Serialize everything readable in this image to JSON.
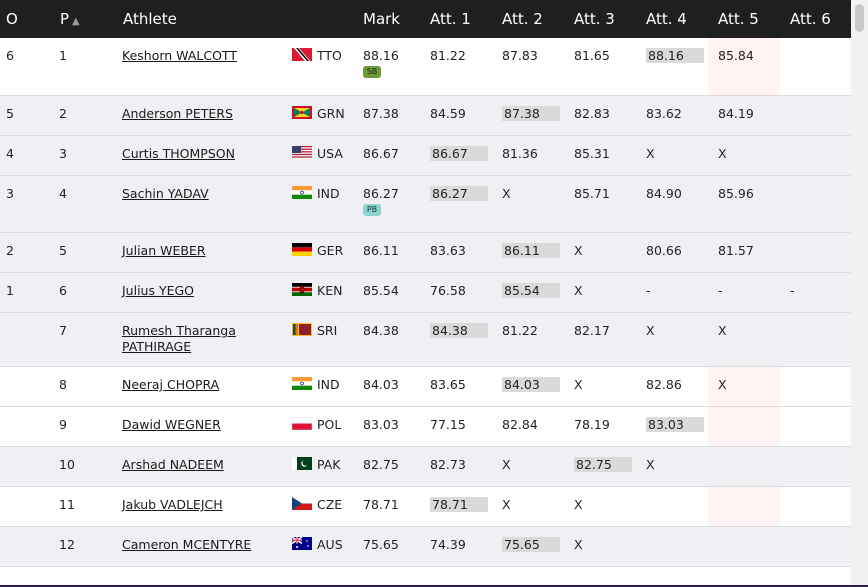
{
  "table": {
    "headers": {
      "o": "O",
      "p": "P",
      "sort_icon": "▲",
      "athlete": "Athlete",
      "mark": "Mark",
      "att1": "Att. 1",
      "att2": "Att. 2",
      "att3": "Att. 3",
      "att4": "Att. 4",
      "att5": "Att. 5",
      "att6": "Att. 6"
    },
    "rows": [
      {
        "o": "6",
        "p": "1",
        "name": "Keshorn WALCOTT",
        "flag": "TTO",
        "country": "TTO",
        "mark": "88.16",
        "badge": "SB",
        "a1": "81.22",
        "a2": "87.83",
        "a3": "81.65",
        "a4": "88.16",
        "a5": "85.84",
        "a6": ""
      },
      {
        "o": "5",
        "p": "2",
        "name": "Anderson PETERS",
        "flag": "GRN",
        "country": "GRN",
        "mark": "87.38",
        "badge": "",
        "a1": "84.59",
        "a2": "87.38",
        "a3": "82.83",
        "a4": "83.62",
        "a5": "84.19",
        "a6": ""
      },
      {
        "o": "4",
        "p": "3",
        "name": "Curtis THOMPSON",
        "flag": "USA",
        "country": "USA",
        "mark": "86.67",
        "badge": "",
        "a1": "86.67",
        "a2": "81.36",
        "a3": "85.31",
        "a4": "X",
        "a5": "X",
        "a6": ""
      },
      {
        "o": "3",
        "p": "4",
        "name": "Sachin YADAV",
        "flag": "IND",
        "country": "IND",
        "mark": "86.27",
        "badge": "PB",
        "a1": "86.27",
        "a2": "X",
        "a3": "85.71",
        "a4": "84.90",
        "a5": "85.96",
        "a6": ""
      },
      {
        "o": "2",
        "p": "5",
        "name": "Julian WEBER",
        "flag": "GER",
        "country": "GER",
        "mark": "86.11",
        "badge": "",
        "a1": "83.63",
        "a2": "86.11",
        "a3": "X",
        "a4": "80.66",
        "a5": "81.57",
        "a6": ""
      },
      {
        "o": "1",
        "p": "6",
        "name": "Julius YEGO",
        "flag": "KEN",
        "country": "KEN",
        "mark": "85.54",
        "badge": "",
        "a1": "76.58",
        "a2": "85.54",
        "a3": "X",
        "a4": "-",
        "a5": "-",
        "a6": "-"
      },
      {
        "o": "",
        "p": "7",
        "name": "Rumesh Tharanga PATHIRAGE",
        "flag": "SRI",
        "country": "SRI",
        "mark": "84.38",
        "badge": "",
        "a1": "84.38",
        "a2": "81.22",
        "a3": "82.17",
        "a4": "X",
        "a5": "X",
        "a6": ""
      },
      {
        "o": "",
        "p": "8",
        "name": "Neeraj CHOPRA",
        "flag": "IND",
        "country": "IND",
        "mark": "84.03",
        "badge": "",
        "a1": "83.65",
        "a2": "84.03",
        "a3": "X",
        "a4": "82.86",
        "a5": "X",
        "a6": ""
      },
      {
        "o": "",
        "p": "9",
        "name": "Dawid WEGNER",
        "flag": "POL",
        "country": "POL",
        "mark": "83.03",
        "badge": "",
        "a1": "77.15",
        "a2": "82.84",
        "a3": "78.19",
        "a4": "83.03",
        "a5": "",
        "a6": ""
      },
      {
        "o": "",
        "p": "10",
        "name": "Arshad NADEEM",
        "flag": "PAK",
        "country": "PAK",
        "mark": "82.75",
        "badge": "",
        "a1": "82.73",
        "a2": "X",
        "a3": "82.75",
        "a4": "X",
        "a5": "",
        "a6": ""
      },
      {
        "o": "",
        "p": "11",
        "name": "Jakub VADLEJCH",
        "flag": "CZE",
        "country": "CZE",
        "mark": "78.71",
        "badge": "",
        "a1": "78.71",
        "a2": "X",
        "a3": "X",
        "a4": "",
        "a5": "",
        "a6": ""
      },
      {
        "o": "",
        "p": "12",
        "name": "Cameron MCENTYRE",
        "flag": "AUS",
        "country": "AUS",
        "mark": "75.65",
        "badge": "",
        "a1": "74.39",
        "a2": "75.65",
        "a3": "X",
        "a4": "",
        "a5": "",
        "a6": ""
      }
    ]
  }
}
